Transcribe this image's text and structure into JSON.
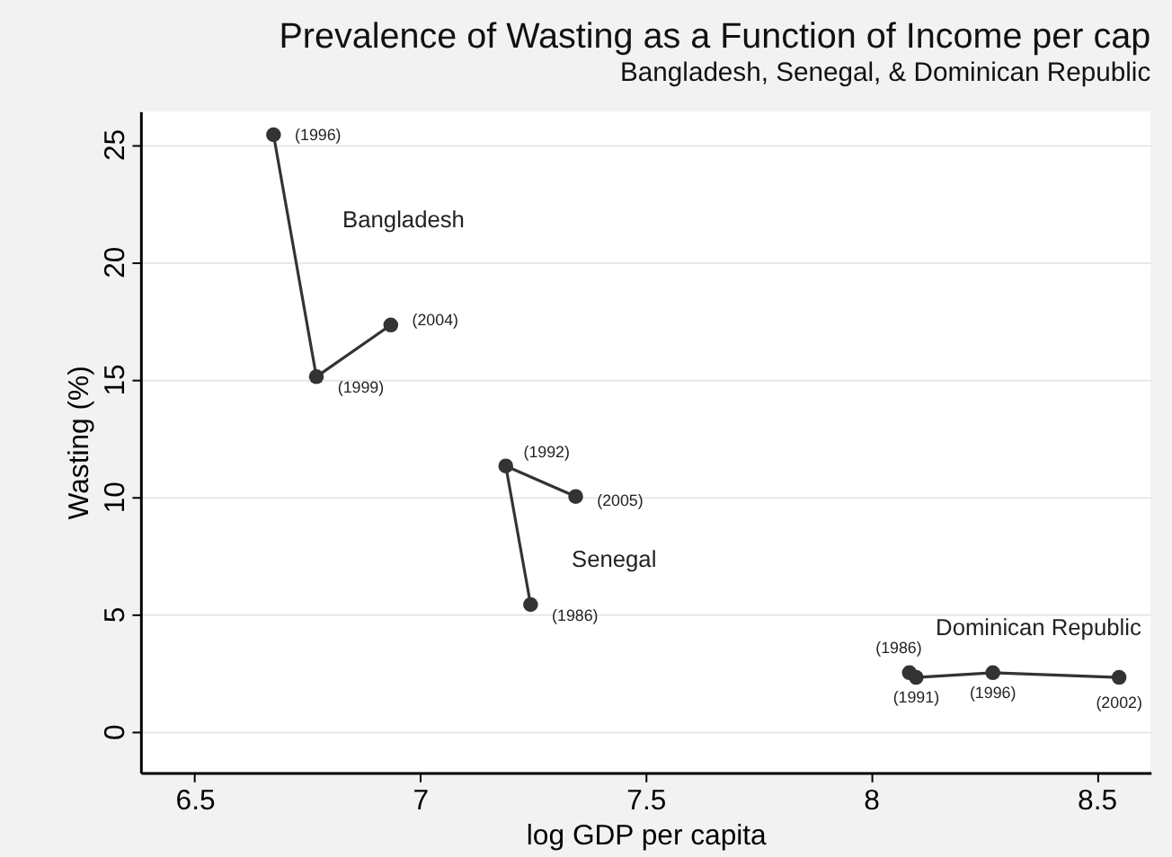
{
  "chart_data": {
    "type": "line",
    "title": "Prevalence of Wasting as a Function of Income per cap",
    "subtitle": "Bangladesh, Senegal, & Dominican Republic",
    "xlabel": "log GDP per capita",
    "ylabel": "Wasting (%)",
    "series": [
      {
        "name": "Bangladesh",
        "color": "#333333",
        "x": [
          6.675,
          6.77,
          6.935
        ],
        "values": [
          25.4,
          15.1,
          17.3
        ]
      },
      {
        "name": "Senegal",
        "color": "#333333",
        "x": [
          7.245,
          7.19,
          7.345
        ],
        "values": [
          5.4,
          11.3,
          10.0
        ]
      },
      {
        "name": "Dominican Republic",
        "color": "#333333",
        "x": [
          8.085,
          8.1,
          8.27,
          8.55
        ],
        "values": [
          2.5,
          2.3,
          2.5,
          2.3
        ]
      }
    ],
    "annotations": [
      {
        "text": "(1996)",
        "x": 6.675,
        "y": 25.4
      },
      {
        "text": "(1999)",
        "x": 6.77,
        "y": 15.1
      },
      {
        "text": "(2004)",
        "x": 6.935,
        "y": 17.3
      },
      {
        "text": "(1986)",
        "x": 7.245,
        "y": 5.4
      },
      {
        "text": "(1992)",
        "x": 7.19,
        "y": 11.3
      },
      {
        "text": "(2005)",
        "x": 7.345,
        "y": 10.0
      },
      {
        "text": "(1986)",
        "x": 8.085,
        "y": 2.5
      },
      {
        "text": "(1991)",
        "x": 8.1,
        "y": 2.3
      },
      {
        "text": "(1996)",
        "x": 8.27,
        "y": 2.5
      },
      {
        "text": "(2002)",
        "x": 8.55,
        "y": 2.3
      }
    ],
    "xlim": [
      6.38,
      8.62
    ],
    "ylim": [
      -1.75,
      26.4
    ],
    "xticks": [
      6.5,
      7,
      7.5,
      8,
      8.5
    ],
    "yticks": [
      0,
      5,
      10,
      15,
      20,
      25
    ],
    "grid": "y",
    "marker": "circle",
    "line_style": "solid"
  }
}
